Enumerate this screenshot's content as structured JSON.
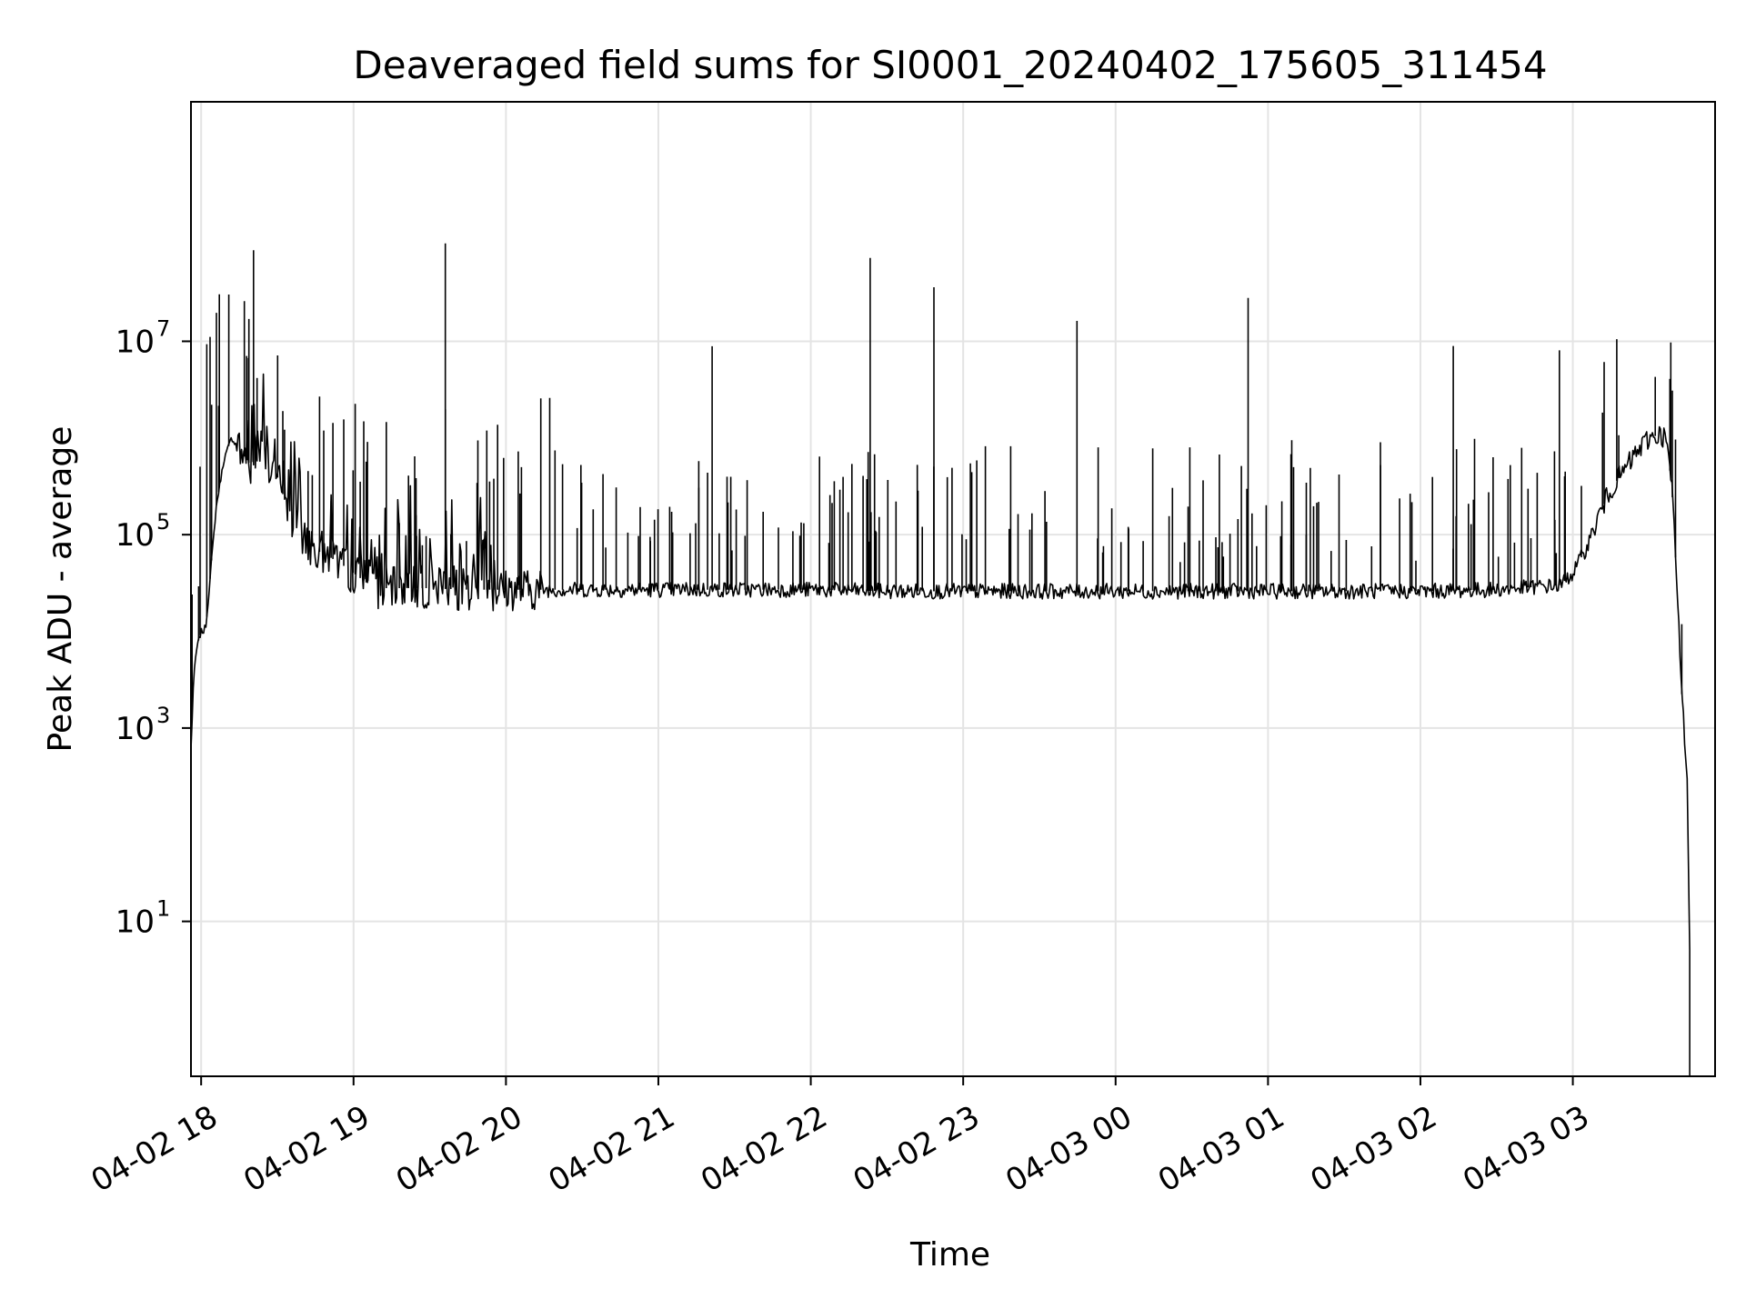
{
  "chart_data": {
    "type": "line",
    "title": "Deaveraged field sums for SI0001_20240402_175605_311454",
    "xlabel": "Time",
    "ylabel": "Peak ADU - average",
    "yscale": "log",
    "ylim": [
      0.25,
      3000000000
    ],
    "xlim": [
      "2024-04-02 17:56",
      "2024-04-03 03:56"
    ],
    "x_ticks": [
      {
        "value": "2024-04-02 18:00",
        "label": "04-02 18"
      },
      {
        "value": "2024-04-02 19:00",
        "label": "04-02 19"
      },
      {
        "value": "2024-04-02 20:00",
        "label": "04-02 20"
      },
      {
        "value": "2024-04-02 21:00",
        "label": "04-02 21"
      },
      {
        "value": "2024-04-02 22:00",
        "label": "04-02 22"
      },
      {
        "value": "2024-04-02 23:00",
        "label": "04-02 23"
      },
      {
        "value": "2024-04-03 00:00",
        "label": "04-03 00"
      },
      {
        "value": "2024-04-03 01:00",
        "label": "04-03 01"
      },
      {
        "value": "2024-04-03 02:00",
        "label": "04-03 02"
      },
      {
        "value": "2024-04-03 03:00",
        "label": "04-03 03"
      }
    ],
    "y_ticks": [
      {
        "value": 10,
        "base": "10",
        "exp": "1"
      },
      {
        "value": 1000,
        "base": "10",
        "exp": "3"
      },
      {
        "value": 100000,
        "base": "10",
        "exp": "5"
      },
      {
        "value": 10000000,
        "base": "10",
        "exp": "7"
      }
    ],
    "grid": true,
    "line_color": "#000000",
    "series": [
      {
        "x": [
          "2024-04-02 17:56",
          "2024-04-02 17:57",
          "2024-04-02 17:58",
          "2024-04-02 17:59",
          "2024-04-02 18:00",
          "2024-04-02 18:01",
          "2024-04-02 18:02",
          "2024-04-02 18:04",
          "2024-04-02 18:06",
          "2024-04-02 18:09",
          "2024-04-02 18:12",
          "2024-04-02 18:16",
          "2024-04-02 18:20",
          "2024-04-02 18:25",
          "2024-04-02 18:30",
          "2024-04-02 18:35",
          "2024-04-02 18:40",
          "2024-04-02 18:45",
          "2024-04-02 18:50",
          "2024-04-02 18:55",
          "2024-04-02 19:00",
          "2024-04-02 19:05",
          "2024-04-02 19:10",
          "2024-04-02 19:20",
          "2024-04-02 19:30",
          "2024-04-02 19:45",
          "2024-04-02 20:00",
          "2024-04-02 20:30",
          "2024-04-02 21:00",
          "2024-04-02 21:30",
          "2024-04-02 22:00",
          "2024-04-02 22:30",
          "2024-04-02 23:00",
          "2024-04-02 23:30",
          "2024-04-03 00:00",
          "2024-04-03 00:30",
          "2024-04-03 01:00",
          "2024-04-03 01:30",
          "2024-04-03 02:00",
          "2024-04-03 02:30",
          "2024-04-03 02:55",
          "2024-04-03 03:00",
          "2024-04-03 03:05",
          "2024-04-03 03:10",
          "2024-04-03 03:15",
          "2024-04-03 03:20",
          "2024-04-03 03:25",
          "2024-04-03 03:30",
          "2024-04-03 03:35",
          "2024-04-03 03:37",
          "2024-04-03 03:39",
          "2024-04-03 03:41",
          "2024-04-03 03:43",
          "2024-04-03 03:45",
          "2024-04-03 03:46",
          "2024-04-03 03:46"
        ],
        "y": [
          600,
          3000,
          6000,
          8000,
          10000,
          10000,
          12000,
          50000,
          200000,
          600000,
          1000000,
          700000,
          500000,
          700000,
          400000,
          150000,
          100000,
          70000,
          60000,
          50000,
          40000,
          32000,
          28000,
          28000,
          28000,
          27000,
          27000,
          27000,
          27000,
          27000,
          27000,
          26000,
          26000,
          26000,
          26000,
          26000,
          26000,
          26000,
          26000,
          27000,
          30000,
          40000,
          70000,
          150000,
          300000,
          450000,
          700000,
          1000000,
          1100000,
          900000,
          300000,
          30000,
          2000,
          300,
          5,
          0.25
        ]
      }
    ]
  }
}
